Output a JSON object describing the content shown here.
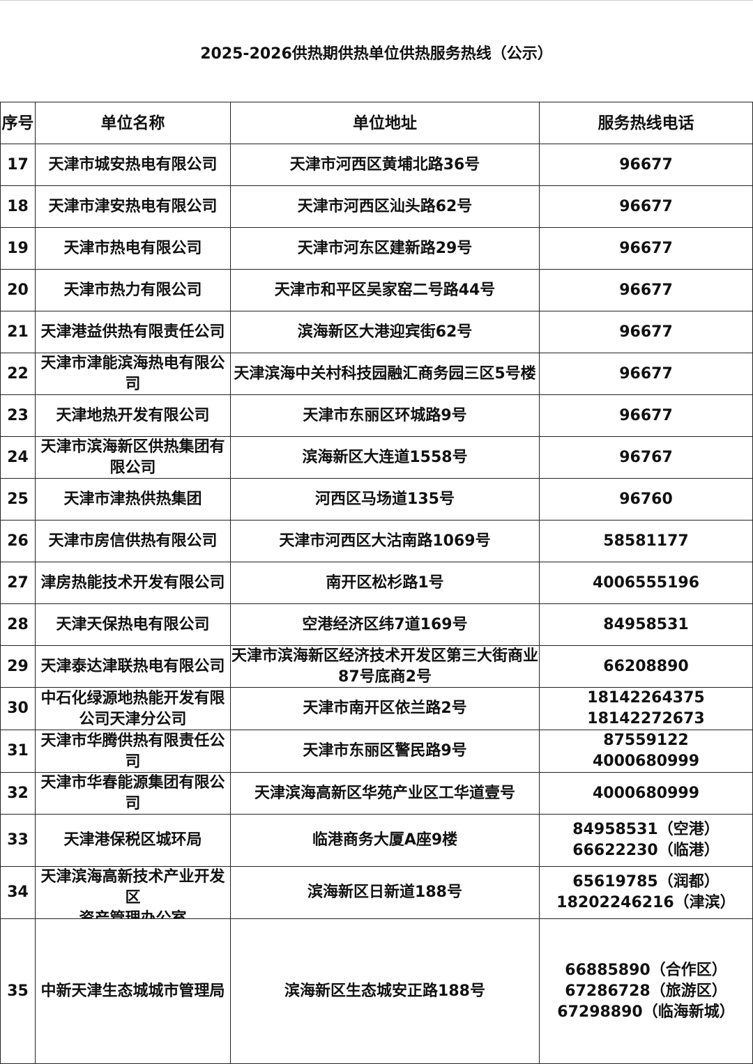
{
  "title": "2025-2026供热期供热单位供热服务热线（公示）",
  "headers": [
    "序号",
    "单位名称",
    "单位地址",
    "服务热线电话"
  ],
  "rows": [
    {
      "no": "17",
      "name": "天津市城安热电有限公司",
      "address": "天津市河西区黄埔北路36号",
      "phones": [
        "96677"
      ]
    },
    {
      "no": "18",
      "name": "天津市津安热电有限公司",
      "address": "天津市河西区汕头路62号",
      "phones": [
        "96677"
      ]
    },
    {
      "no": "19",
      "name": "天津市热电有限公司",
      "address": "天津市河东区建新路29号",
      "phones": [
        "96677"
      ]
    },
    {
      "no": "20",
      "name": "天津市热力有限公司",
      "address": "天津市和平区吴家窑二号路44号",
      "phones": [
        "96677"
      ]
    },
    {
      "no": "21",
      "name": "天津港益供热有限责任公司",
      "address": "滨海新区大港迎宾街62号",
      "phones": [
        "96677"
      ]
    },
    {
      "no": "22",
      "name": "天津市津能滨海热电有限公司",
      "address": "天津滨海中关村科技园融汇商务园三区5号楼",
      "phones": [
        "96677"
      ]
    },
    {
      "no": "23",
      "name": "天津地热开发有限公司",
      "address": "天津市东丽区环城路9号",
      "phones": [
        "96677"
      ]
    },
    {
      "no": "24",
      "name": "天津市滨海新区供热集团有限公司",
      "address": "滨海新区大连道1558号",
      "phones": [
        "96767"
      ]
    },
    {
      "no": "25",
      "name": "天津市津热供热集团",
      "address": "河西区马场道135号",
      "phones": [
        "96760"
      ]
    },
    {
      "no": "26",
      "name": "天津市房信供热有限公司",
      "address": "天津市河西区大沽南路1069号",
      "phones": [
        "58581177"
      ]
    },
    {
      "no": "27",
      "name": "津房热能技术开发有限公司",
      "address": "南开区松杉路1号",
      "phones": [
        "4006555196"
      ]
    },
    {
      "no": "28",
      "name": "天津天保热电有限公司",
      "address": "空港经济区纬7道169号",
      "phones": [
        "84958531"
      ]
    },
    {
      "no": "29",
      "name": "天津泰达津联热电有限公司",
      "address": "天津市滨海新区经济技术开发区第三大街商业87号底商2号",
      "phones": [
        "66208890"
      ]
    },
    {
      "no": "30",
      "name": "中石化绿源地热能开发有限公司天津分公司",
      "address": "天津市南开区依兰路2号",
      "phones": [
        "18142264375",
        "18142272673"
      ]
    },
    {
      "no": "31",
      "name": "天津市华腾供热有限责任公司",
      "address": "天津市东丽区警民路9号",
      "phones": [
        "87559122",
        "4000680999"
      ]
    },
    {
      "no": "32",
      "name": "天津市华春能源集团有限公司",
      "address": "天津滨海高新区华苑产业区工华道壹号",
      "phones": [
        "4000680999"
      ]
    },
    {
      "no": "33",
      "name": "天津港保税区城环局",
      "address": "临港商务大厦A座9楼",
      "phones": [
        "84958531（空港）",
        "66622230（临港）"
      ]
    },
    {
      "no": "34",
      "name": "天津滨海高新技术产业开发区\n资产管理办公室",
      "address": "滨海新区日新道188号",
      "phones": [
        "65619785（润都）",
        "18202246216（津滨）"
      ]
    },
    {
      "no": "35",
      "name": "中新天津生态城城市管理局",
      "address": "滨海新区生态城安正路188号",
      "phones": [
        "66885890（合作区）",
        "67286728（旅游区）",
        "67298890（临海新城）"
      ]
    }
  ]
}
